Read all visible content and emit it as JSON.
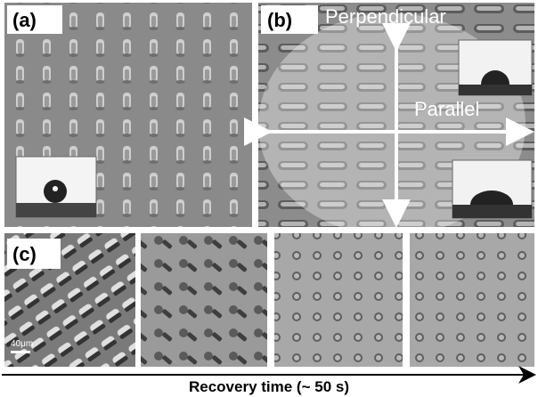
{
  "panels": [
    {
      "label": "(a)"
    },
    {
      "label": "(b)",
      "annotations": [
        "Perpendicular",
        "Parallel"
      ]
    },
    {
      "label": "(c)",
      "scale_bar": "40μm"
    }
  ],
  "caption": "Recovery time (~ 50 s)"
}
